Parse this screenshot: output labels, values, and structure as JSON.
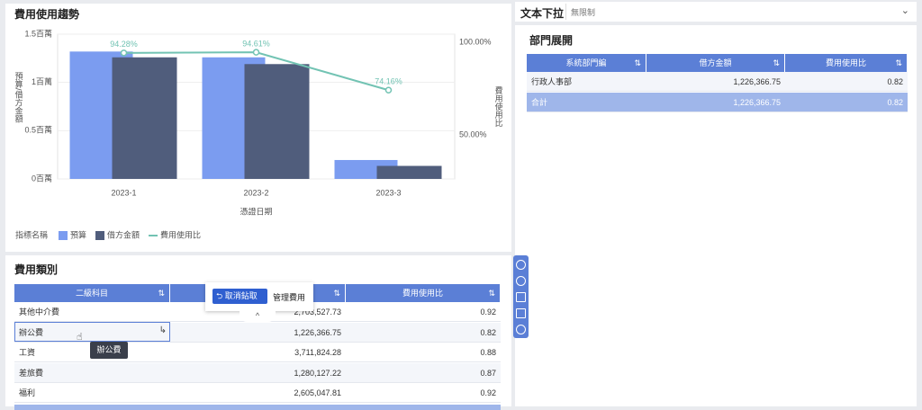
{
  "trend_panel": {
    "title": "費用使用趨勢",
    "chart_data": {
      "type": "bar",
      "xlabel": "憑證日期",
      "ylabel": "預算/借方金額",
      "y2label": "費用使用比",
      "categories": [
        "2023-1",
        "2023-2",
        "2023-3"
      ],
      "series": [
        {
          "name": "預算",
          "color": "#7b9cf0",
          "values": [
            1320000,
            1260000,
            196000
          ]
        },
        {
          "name": "借方金額",
          "color": "#505d7c",
          "values": [
            1260000,
            1190000,
            135000
          ]
        },
        {
          "name": "費用使用比",
          "type": "line",
          "axis": "y2",
          "color": "#72c3b3",
          "values": [
            94.28,
            94.61,
            74.16
          ],
          "value_labels": [
            "94.28%",
            "94.61%",
            "74.16%"
          ]
        }
      ],
      "ylim": [
        0,
        1500000
      ],
      "yticks": [
        {
          "value": 0,
          "label": "0百萬"
        },
        {
          "value": 500000,
          "label": "0.5百萬"
        },
        {
          "value": 1000000,
          "label": "1百萬"
        },
        {
          "value": 1500000,
          "label": "1.5百萬"
        }
      ],
      "y2lim": [
        26.2,
        104.4
      ],
      "y2ticks": [
        {
          "value": 50,
          "label": "50.00%"
        },
        {
          "value": 100,
          "label": "100.00%"
        }
      ],
      "legend_title": "指標名稱",
      "legend": "bottom-left"
    }
  },
  "filter": {
    "label": "文本下拉",
    "value": "無限制"
  },
  "dept_panel": {
    "title": "部門展開",
    "table": {
      "columns": [
        "系統部門編",
        "借方金額",
        "費用使用比"
      ],
      "rows": [
        [
          "行政人事部",
          "1,226,366.75",
          "0.82"
        ],
        [
          "合計",
          "1,226,366.75",
          "0.82"
        ]
      ]
    }
  },
  "category_panel": {
    "title": "費用類別",
    "table": {
      "columns": [
        "二級科目",
        null,
        "費用使用比"
      ],
      "rows": [
        [
          "其他中介費",
          "2,703,527.73",
          "0.92"
        ],
        [
          "辦公費",
          "1,226,366.75",
          "0.82"
        ],
        [
          "工資",
          "3,711,824.28",
          "0.88"
        ],
        [
          "差旅費",
          "1,280,127.22",
          "0.87"
        ],
        [
          "福利",
          "2,605,047.81",
          "0.92"
        ]
      ]
    },
    "drill_popup": {
      "button": "取消鉆取",
      "label": "管理費用"
    },
    "tooltip": "辦公費"
  }
}
